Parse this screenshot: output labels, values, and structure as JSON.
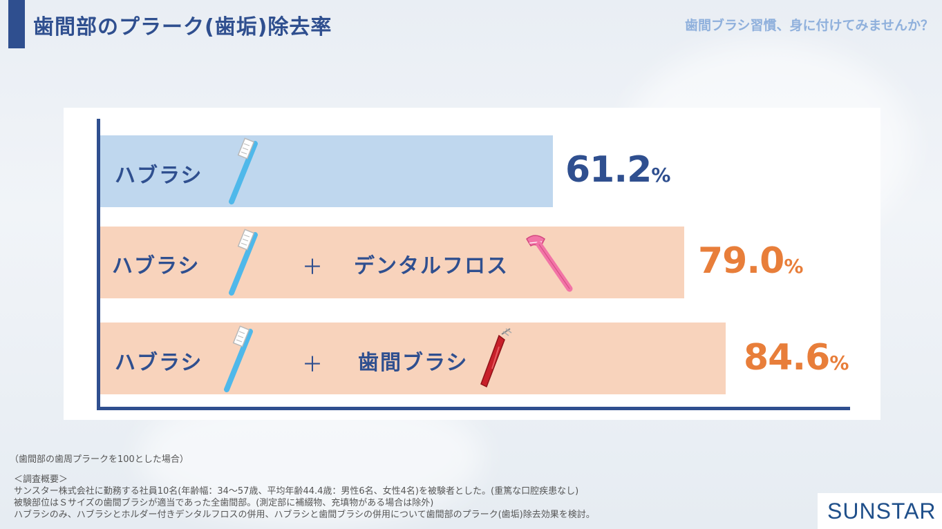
{
  "header": {
    "title": "歯間部のプラーク(歯垢)除去率",
    "subtitle": "歯間ブラシ習慣、身に付けてみませんか？"
  },
  "chart_data": {
    "type": "bar",
    "orientation": "horizontal",
    "categories": [
      "ハブラシ",
      "ハブラシ ＋ デンタルフロス",
      "ハブラシ ＋ 歯間ブラシ"
    ],
    "values": [
      61.2,
      79.0,
      84.6
    ],
    "unit": "%",
    "bars": [
      {
        "label": "ハブラシ",
        "value_text": "61.2",
        "bar_color": "#bfd7ee",
        "value_color": "#2f4f8f"
      },
      {
        "label": "ハブラシ",
        "label2": "デンタルフロス",
        "value_text": "79.0",
        "bar_color": "#f8d3bc",
        "value_color": "#e87e3a"
      },
      {
        "label": "ハブラシ",
        "label2": "歯間ブラシ",
        "value_text": "84.6",
        "bar_color": "#f8d3bc",
        "value_color": "#e87e3a"
      }
    ],
    "plus": "＋",
    "pct": "%",
    "xlim": [
      0,
      100
    ]
  },
  "notes": {
    "basis": "（歯間部の歯周プラークを100とした場合）",
    "heading": "＜調査概要＞",
    "line1": "サンスター株式会社に勤務する社員10名(年齢幅：34〜57歳、平均年齢44.4歳：男性6名、女性4名)を被験者とした。(重篤な口腔疾患なし)",
    "line2": "被験部位はＳサイズの歯間ブラシが適当であった全歯間部。(測定部に補綴物、充填物がある場合は除外)",
    "line3": "ハブラシのみ、ハブラシとホルダー付きデンタルフロスの併用、ハブラシと歯間ブラシの併用について歯間部のプラーク(歯垢)除去効果を検討。"
  },
  "logo": {
    "text": "SUNSTAR"
  },
  "icons": [
    "toothbrush-icon",
    "dental-floss-icon",
    "interdental-brush-icon"
  ]
}
